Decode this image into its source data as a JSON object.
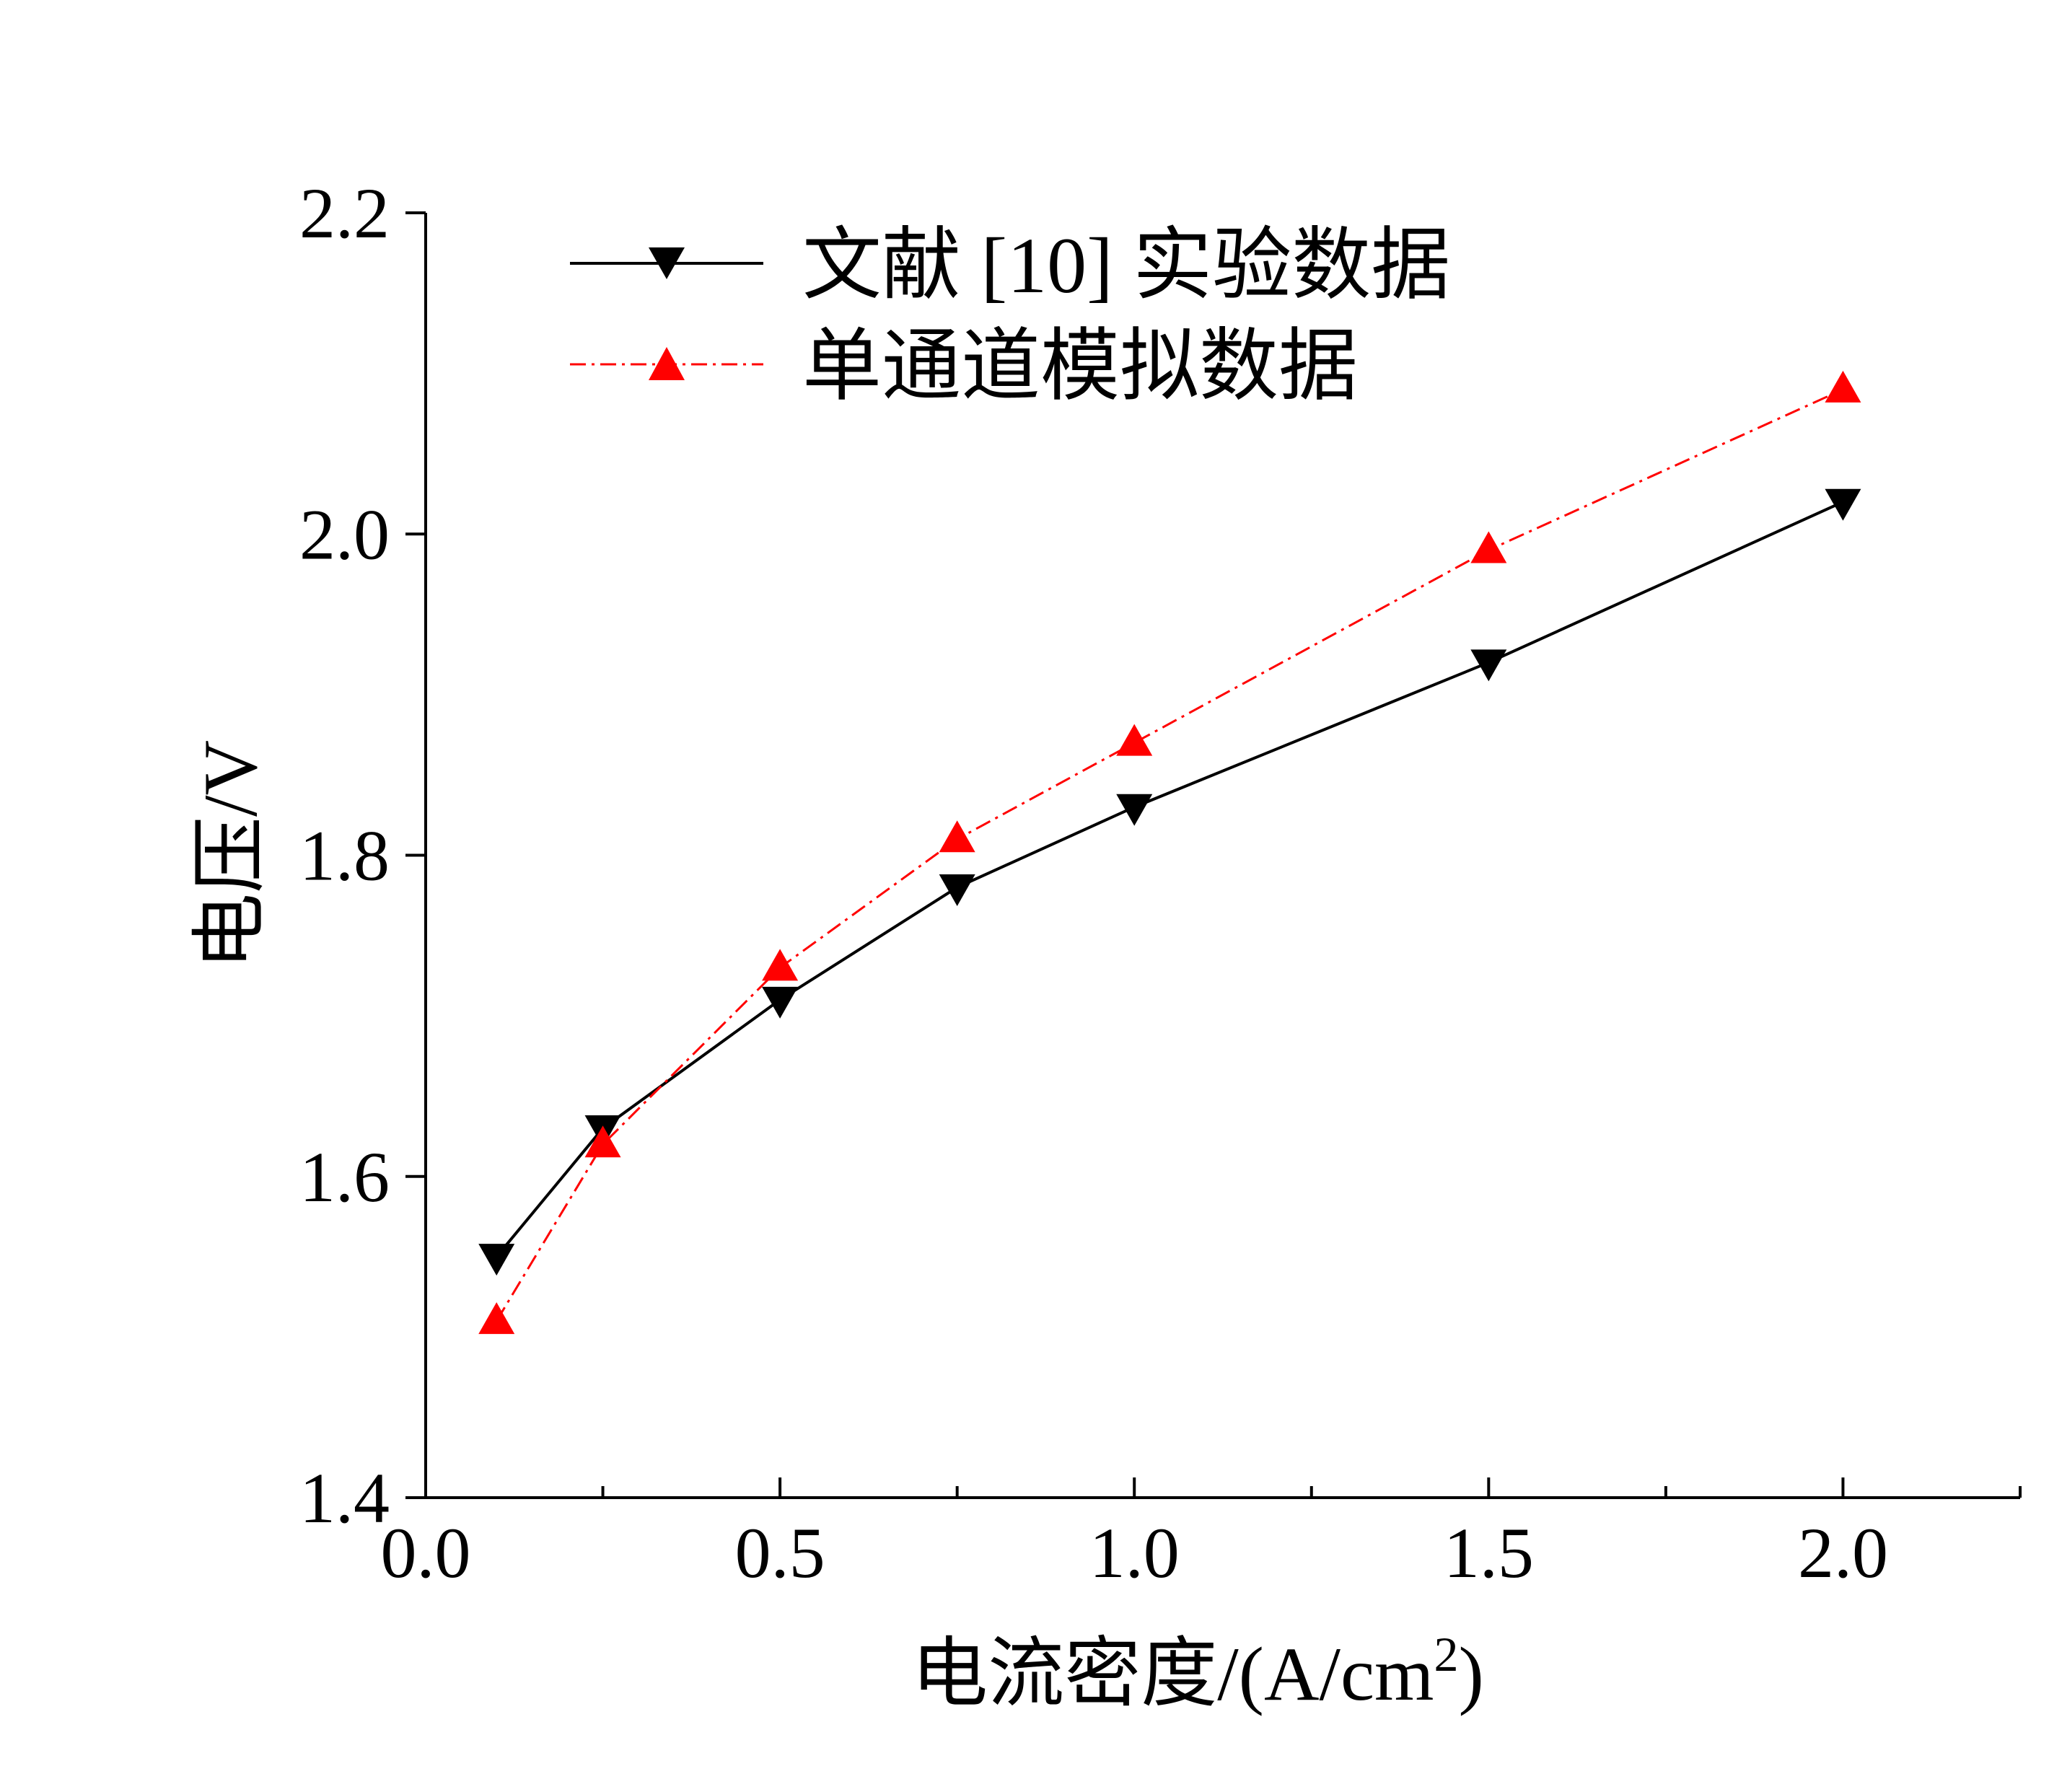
{
  "chart_data": {
    "type": "line",
    "title": "",
    "xlabel": "电流密度/(A/cm",
    "xlabel_sup": "2",
    "xlabel_end": ")",
    "ylabel": "电压/V",
    "xlim": [
      0.0,
      2.25
    ],
    "ylim": [
      1.4,
      2.2
    ],
    "xticks": [
      "0.0",
      "0.5",
      "1.0",
      "1.5",
      "2.0"
    ],
    "yticks": [
      "1.4",
      "1.6",
      "1.8",
      "2.0",
      "2.2"
    ],
    "xtick_values": [
      0.0,
      0.5,
      1.0,
      1.5,
      2.0
    ],
    "ytick_values": [
      1.4,
      1.6,
      1.8,
      2.0,
      2.2
    ],
    "x_minor_ticks": [
      0.25,
      0.75,
      1.25,
      1.75,
      2.25
    ],
    "legend_position": "top-left",
    "grid": false,
    "series": [
      {
        "name": "文献 [10] 实验数据",
        "color": "#000000",
        "line_style": "solid",
        "marker": "triangle-down",
        "x": [
          0.1,
          0.25,
          0.5,
          0.75,
          1.0,
          1.5,
          2.0
        ],
        "y": [
          1.55,
          1.63,
          1.71,
          1.78,
          1.83,
          1.92,
          2.02
        ]
      },
      {
        "name": "单通道模拟数据",
        "color": "#ff0000",
        "line_style": "dash-dot",
        "marker": "triangle-up",
        "x": [
          0.1,
          0.25,
          0.5,
          0.75,
          1.0,
          1.5,
          2.0
        ],
        "y": [
          1.51,
          1.62,
          1.73,
          1.81,
          1.87,
          1.99,
          2.09
        ]
      }
    ]
  }
}
